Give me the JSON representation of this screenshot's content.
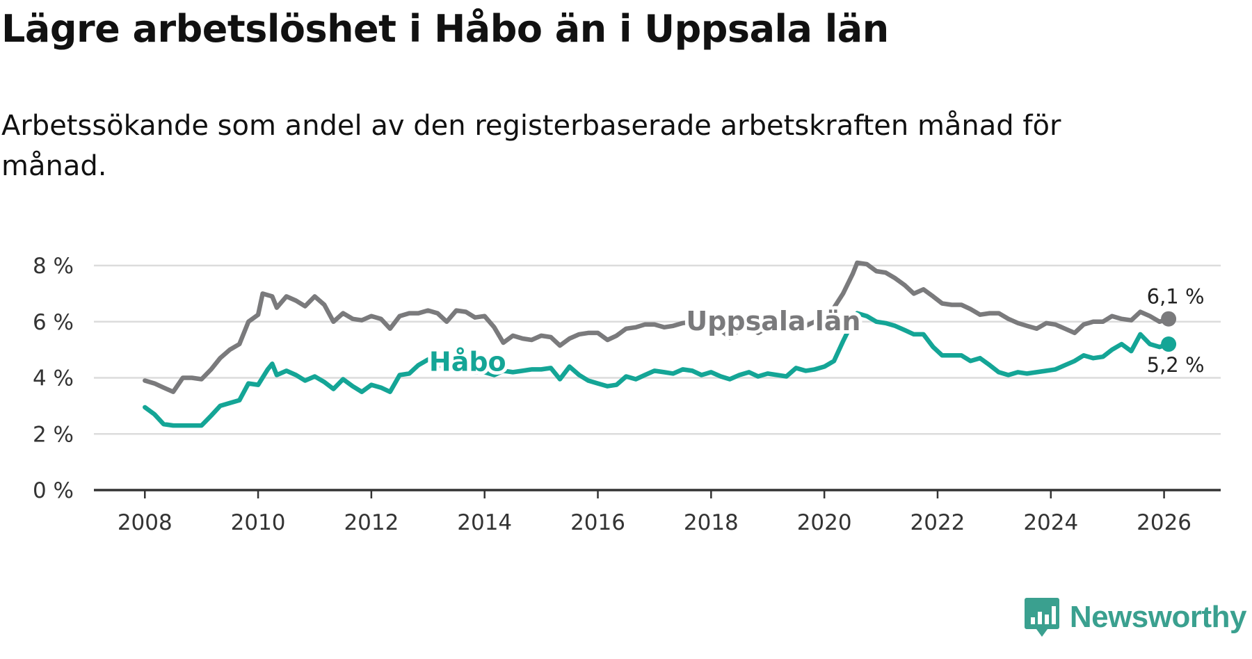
{
  "title": "Lägre arbetslöshet i Håbo än i Uppsala län",
  "subtitle": "Arbetssökande som andel av den registerbaserade arbetskraften månad för månad.",
  "brand": {
    "name": "Newsworthy"
  },
  "colors": {
    "uppsala": "#7a7a7c",
    "habo": "#14a596",
    "grid": "#dcdcdc",
    "axis": "#333333"
  },
  "chart_data": {
    "type": "line",
    "title": "Lägre arbetslöshet i Håbo än i Uppsala län",
    "xlabel": "",
    "ylabel": "",
    "xlim": [
      2007.1,
      2027.0
    ],
    "ylim": [
      0,
      8
    ],
    "yticks": [
      0,
      2,
      4,
      6,
      8
    ],
    "ytick_labels": [
      "0 %",
      "2 %",
      "4 %",
      "6 %",
      "8 %"
    ],
    "xticks": [
      2008,
      2010,
      2012,
      2014,
      2016,
      2018,
      2020,
      2022,
      2024,
      2026
    ],
    "xtick_labels": [
      "2008",
      "2010",
      "2012",
      "2014",
      "2016",
      "2018",
      "2020",
      "2022",
      "2024",
      "2026"
    ],
    "grid": true,
    "legend": "inline labels",
    "series": [
      {
        "name": "Uppsala län",
        "label": "Uppsala län",
        "end_label": "6,1 %",
        "points": [
          [
            2008.0,
            3.9
          ],
          [
            2008.17,
            3.8
          ],
          [
            2008.33,
            3.65
          ],
          [
            2008.5,
            3.5
          ],
          [
            2008.67,
            4.0
          ],
          [
            2008.83,
            4.0
          ],
          [
            2009.0,
            3.95
          ],
          [
            2009.17,
            4.3
          ],
          [
            2009.33,
            4.7
          ],
          [
            2009.5,
            5.0
          ],
          [
            2009.67,
            5.2
          ],
          [
            2009.83,
            6.0
          ],
          [
            2010.0,
            6.25
          ],
          [
            2010.08,
            7.0
          ],
          [
            2010.25,
            6.9
          ],
          [
            2010.33,
            6.5
          ],
          [
            2010.5,
            6.9
          ],
          [
            2010.67,
            6.75
          ],
          [
            2010.83,
            6.55
          ],
          [
            2011.0,
            6.9
          ],
          [
            2011.17,
            6.6
          ],
          [
            2011.33,
            6.0
          ],
          [
            2011.5,
            6.3
          ],
          [
            2011.67,
            6.1
          ],
          [
            2011.83,
            6.05
          ],
          [
            2012.0,
            6.2
          ],
          [
            2012.17,
            6.1
          ],
          [
            2012.33,
            5.75
          ],
          [
            2012.5,
            6.2
          ],
          [
            2012.67,
            6.3
          ],
          [
            2012.83,
            6.3
          ],
          [
            2013.0,
            6.4
          ],
          [
            2013.17,
            6.3
          ],
          [
            2013.33,
            6.0
          ],
          [
            2013.5,
            6.4
          ],
          [
            2013.67,
            6.35
          ],
          [
            2013.83,
            6.15
          ],
          [
            2014.0,
            6.2
          ],
          [
            2014.17,
            5.8
          ],
          [
            2014.33,
            5.25
          ],
          [
            2014.5,
            5.5
          ],
          [
            2014.67,
            5.4
          ],
          [
            2014.83,
            5.35
          ],
          [
            2015.0,
            5.5
          ],
          [
            2015.17,
            5.45
          ],
          [
            2015.33,
            5.15
          ],
          [
            2015.5,
            5.4
          ],
          [
            2015.67,
            5.55
          ],
          [
            2015.83,
            5.6
          ],
          [
            2016.0,
            5.6
          ],
          [
            2016.17,
            5.35
          ],
          [
            2016.33,
            5.5
          ],
          [
            2016.5,
            5.75
          ],
          [
            2016.67,
            5.8
          ],
          [
            2016.83,
            5.9
          ],
          [
            2017.0,
            5.9
          ],
          [
            2017.17,
            5.8
          ],
          [
            2017.33,
            5.85
          ],
          [
            2017.5,
            5.95
          ],
          [
            2017.67,
            6.0
          ],
          [
            2017.83,
            5.95
          ],
          [
            2018.0,
            5.85
          ],
          [
            2018.17,
            5.7
          ],
          [
            2018.33,
            5.45
          ],
          [
            2018.5,
            5.7
          ],
          [
            2018.67,
            5.85
          ],
          [
            2018.83,
            5.6
          ],
          [
            2019.0,
            5.8
          ],
          [
            2019.17,
            5.9
          ],
          [
            2019.33,
            6.0
          ],
          [
            2019.5,
            5.75
          ],
          [
            2019.67,
            5.85
          ],
          [
            2019.83,
            6.0
          ],
          [
            2020.0,
            6.1
          ],
          [
            2020.17,
            6.5
          ],
          [
            2020.33,
            7.0
          ],
          [
            2020.5,
            7.7
          ],
          [
            2020.58,
            8.1
          ],
          [
            2020.75,
            8.05
          ],
          [
            2020.92,
            7.8
          ],
          [
            2021.08,
            7.75
          ],
          [
            2021.25,
            7.55
          ],
          [
            2021.42,
            7.3
          ],
          [
            2021.58,
            7.0
          ],
          [
            2021.75,
            7.15
          ],
          [
            2021.92,
            6.9
          ],
          [
            2022.08,
            6.65
          ],
          [
            2022.25,
            6.6
          ],
          [
            2022.42,
            6.6
          ],
          [
            2022.58,
            6.45
          ],
          [
            2022.75,
            6.25
          ],
          [
            2022.92,
            6.3
          ],
          [
            2023.08,
            6.3
          ],
          [
            2023.25,
            6.1
          ],
          [
            2023.42,
            5.95
          ],
          [
            2023.58,
            5.85
          ],
          [
            2023.75,
            5.75
          ],
          [
            2023.92,
            5.95
          ],
          [
            2024.08,
            5.9
          ],
          [
            2024.25,
            5.75
          ],
          [
            2024.42,
            5.6
          ],
          [
            2024.58,
            5.9
          ],
          [
            2024.75,
            6.0
          ],
          [
            2024.92,
            6.0
          ],
          [
            2025.08,
            6.2
          ],
          [
            2025.25,
            6.1
          ],
          [
            2025.42,
            6.05
          ],
          [
            2025.58,
            6.35
          ],
          [
            2025.75,
            6.2
          ],
          [
            2025.92,
            6.0
          ],
          [
            2026.08,
            6.1
          ]
        ]
      },
      {
        "name": "Håbo",
        "label": "Håbo",
        "end_label": "5,2 %",
        "points": [
          [
            2008.0,
            2.95
          ],
          [
            2008.17,
            2.7
          ],
          [
            2008.33,
            2.35
          ],
          [
            2008.5,
            2.3
          ],
          [
            2008.67,
            2.3
          ],
          [
            2008.83,
            2.3
          ],
          [
            2009.0,
            2.3
          ],
          [
            2009.17,
            2.65
          ],
          [
            2009.33,
            3.0
          ],
          [
            2009.5,
            3.1
          ],
          [
            2009.67,
            3.2
          ],
          [
            2009.83,
            3.8
          ],
          [
            2010.0,
            3.75
          ],
          [
            2010.17,
            4.3
          ],
          [
            2010.25,
            4.5
          ],
          [
            2010.33,
            4.1
          ],
          [
            2010.5,
            4.25
          ],
          [
            2010.67,
            4.1
          ],
          [
            2010.83,
            3.9
          ],
          [
            2011.0,
            4.05
          ],
          [
            2011.17,
            3.85
          ],
          [
            2011.33,
            3.6
          ],
          [
            2011.5,
            3.95
          ],
          [
            2011.67,
            3.7
          ],
          [
            2011.83,
            3.5
          ],
          [
            2012.0,
            3.75
          ],
          [
            2012.17,
            3.65
          ],
          [
            2012.33,
            3.5
          ],
          [
            2012.5,
            4.1
          ],
          [
            2012.67,
            4.15
          ],
          [
            2012.83,
            4.45
          ],
          [
            2013.0,
            4.65
          ],
          [
            2013.17,
            4.5
          ],
          [
            2013.33,
            4.3
          ],
          [
            2013.5,
            4.35
          ],
          [
            2013.67,
            4.3
          ],
          [
            2013.83,
            4.2
          ],
          [
            2014.0,
            4.2
          ],
          [
            2014.17,
            4.1
          ],
          [
            2014.33,
            4.25
          ],
          [
            2014.5,
            4.2
          ],
          [
            2014.67,
            4.25
          ],
          [
            2014.83,
            4.3
          ],
          [
            2015.0,
            4.3
          ],
          [
            2015.17,
            4.35
          ],
          [
            2015.33,
            3.95
          ],
          [
            2015.5,
            4.4
          ],
          [
            2015.67,
            4.1
          ],
          [
            2015.83,
            3.9
          ],
          [
            2016.0,
            3.8
          ],
          [
            2016.17,
            3.7
          ],
          [
            2016.33,
            3.75
          ],
          [
            2016.5,
            4.05
          ],
          [
            2016.67,
            3.95
          ],
          [
            2016.83,
            4.1
          ],
          [
            2017.0,
            4.25
          ],
          [
            2017.17,
            4.2
          ],
          [
            2017.33,
            4.15
          ],
          [
            2017.5,
            4.3
          ],
          [
            2017.67,
            4.25
          ],
          [
            2017.83,
            4.1
          ],
          [
            2018.0,
            4.2
          ],
          [
            2018.17,
            4.05
          ],
          [
            2018.33,
            3.95
          ],
          [
            2018.5,
            4.1
          ],
          [
            2018.67,
            4.2
          ],
          [
            2018.83,
            4.05
          ],
          [
            2019.0,
            4.15
          ],
          [
            2019.17,
            4.1
          ],
          [
            2019.33,
            4.05
          ],
          [
            2019.5,
            4.35
          ],
          [
            2019.67,
            4.25
          ],
          [
            2019.83,
            4.3
          ],
          [
            2020.0,
            4.4
          ],
          [
            2020.17,
            4.6
          ],
          [
            2020.33,
            5.3
          ],
          [
            2020.5,
            6.0
          ],
          [
            2020.58,
            6.3
          ],
          [
            2020.75,
            6.2
          ],
          [
            2020.92,
            6.0
          ],
          [
            2021.08,
            5.95
          ],
          [
            2021.25,
            5.85
          ],
          [
            2021.42,
            5.7
          ],
          [
            2021.58,
            5.55
          ],
          [
            2021.75,
            5.55
          ],
          [
            2021.92,
            5.1
          ],
          [
            2022.08,
            4.8
          ],
          [
            2022.25,
            4.8
          ],
          [
            2022.42,
            4.8
          ],
          [
            2022.58,
            4.6
          ],
          [
            2022.75,
            4.7
          ],
          [
            2022.92,
            4.45
          ],
          [
            2023.08,
            4.2
          ],
          [
            2023.25,
            4.1
          ],
          [
            2023.42,
            4.2
          ],
          [
            2023.58,
            4.15
          ],
          [
            2023.75,
            4.2
          ],
          [
            2023.92,
            4.25
          ],
          [
            2024.08,
            4.3
          ],
          [
            2024.25,
            4.45
          ],
          [
            2024.42,
            4.6
          ],
          [
            2024.58,
            4.8
          ],
          [
            2024.75,
            4.7
          ],
          [
            2024.92,
            4.75
          ],
          [
            2025.08,
            5.0
          ],
          [
            2025.25,
            5.2
          ],
          [
            2025.42,
            4.95
          ],
          [
            2025.58,
            5.55
          ],
          [
            2025.75,
            5.2
          ],
          [
            2025.92,
            5.1
          ],
          [
            2026.08,
            5.2
          ]
        ]
      }
    ]
  }
}
